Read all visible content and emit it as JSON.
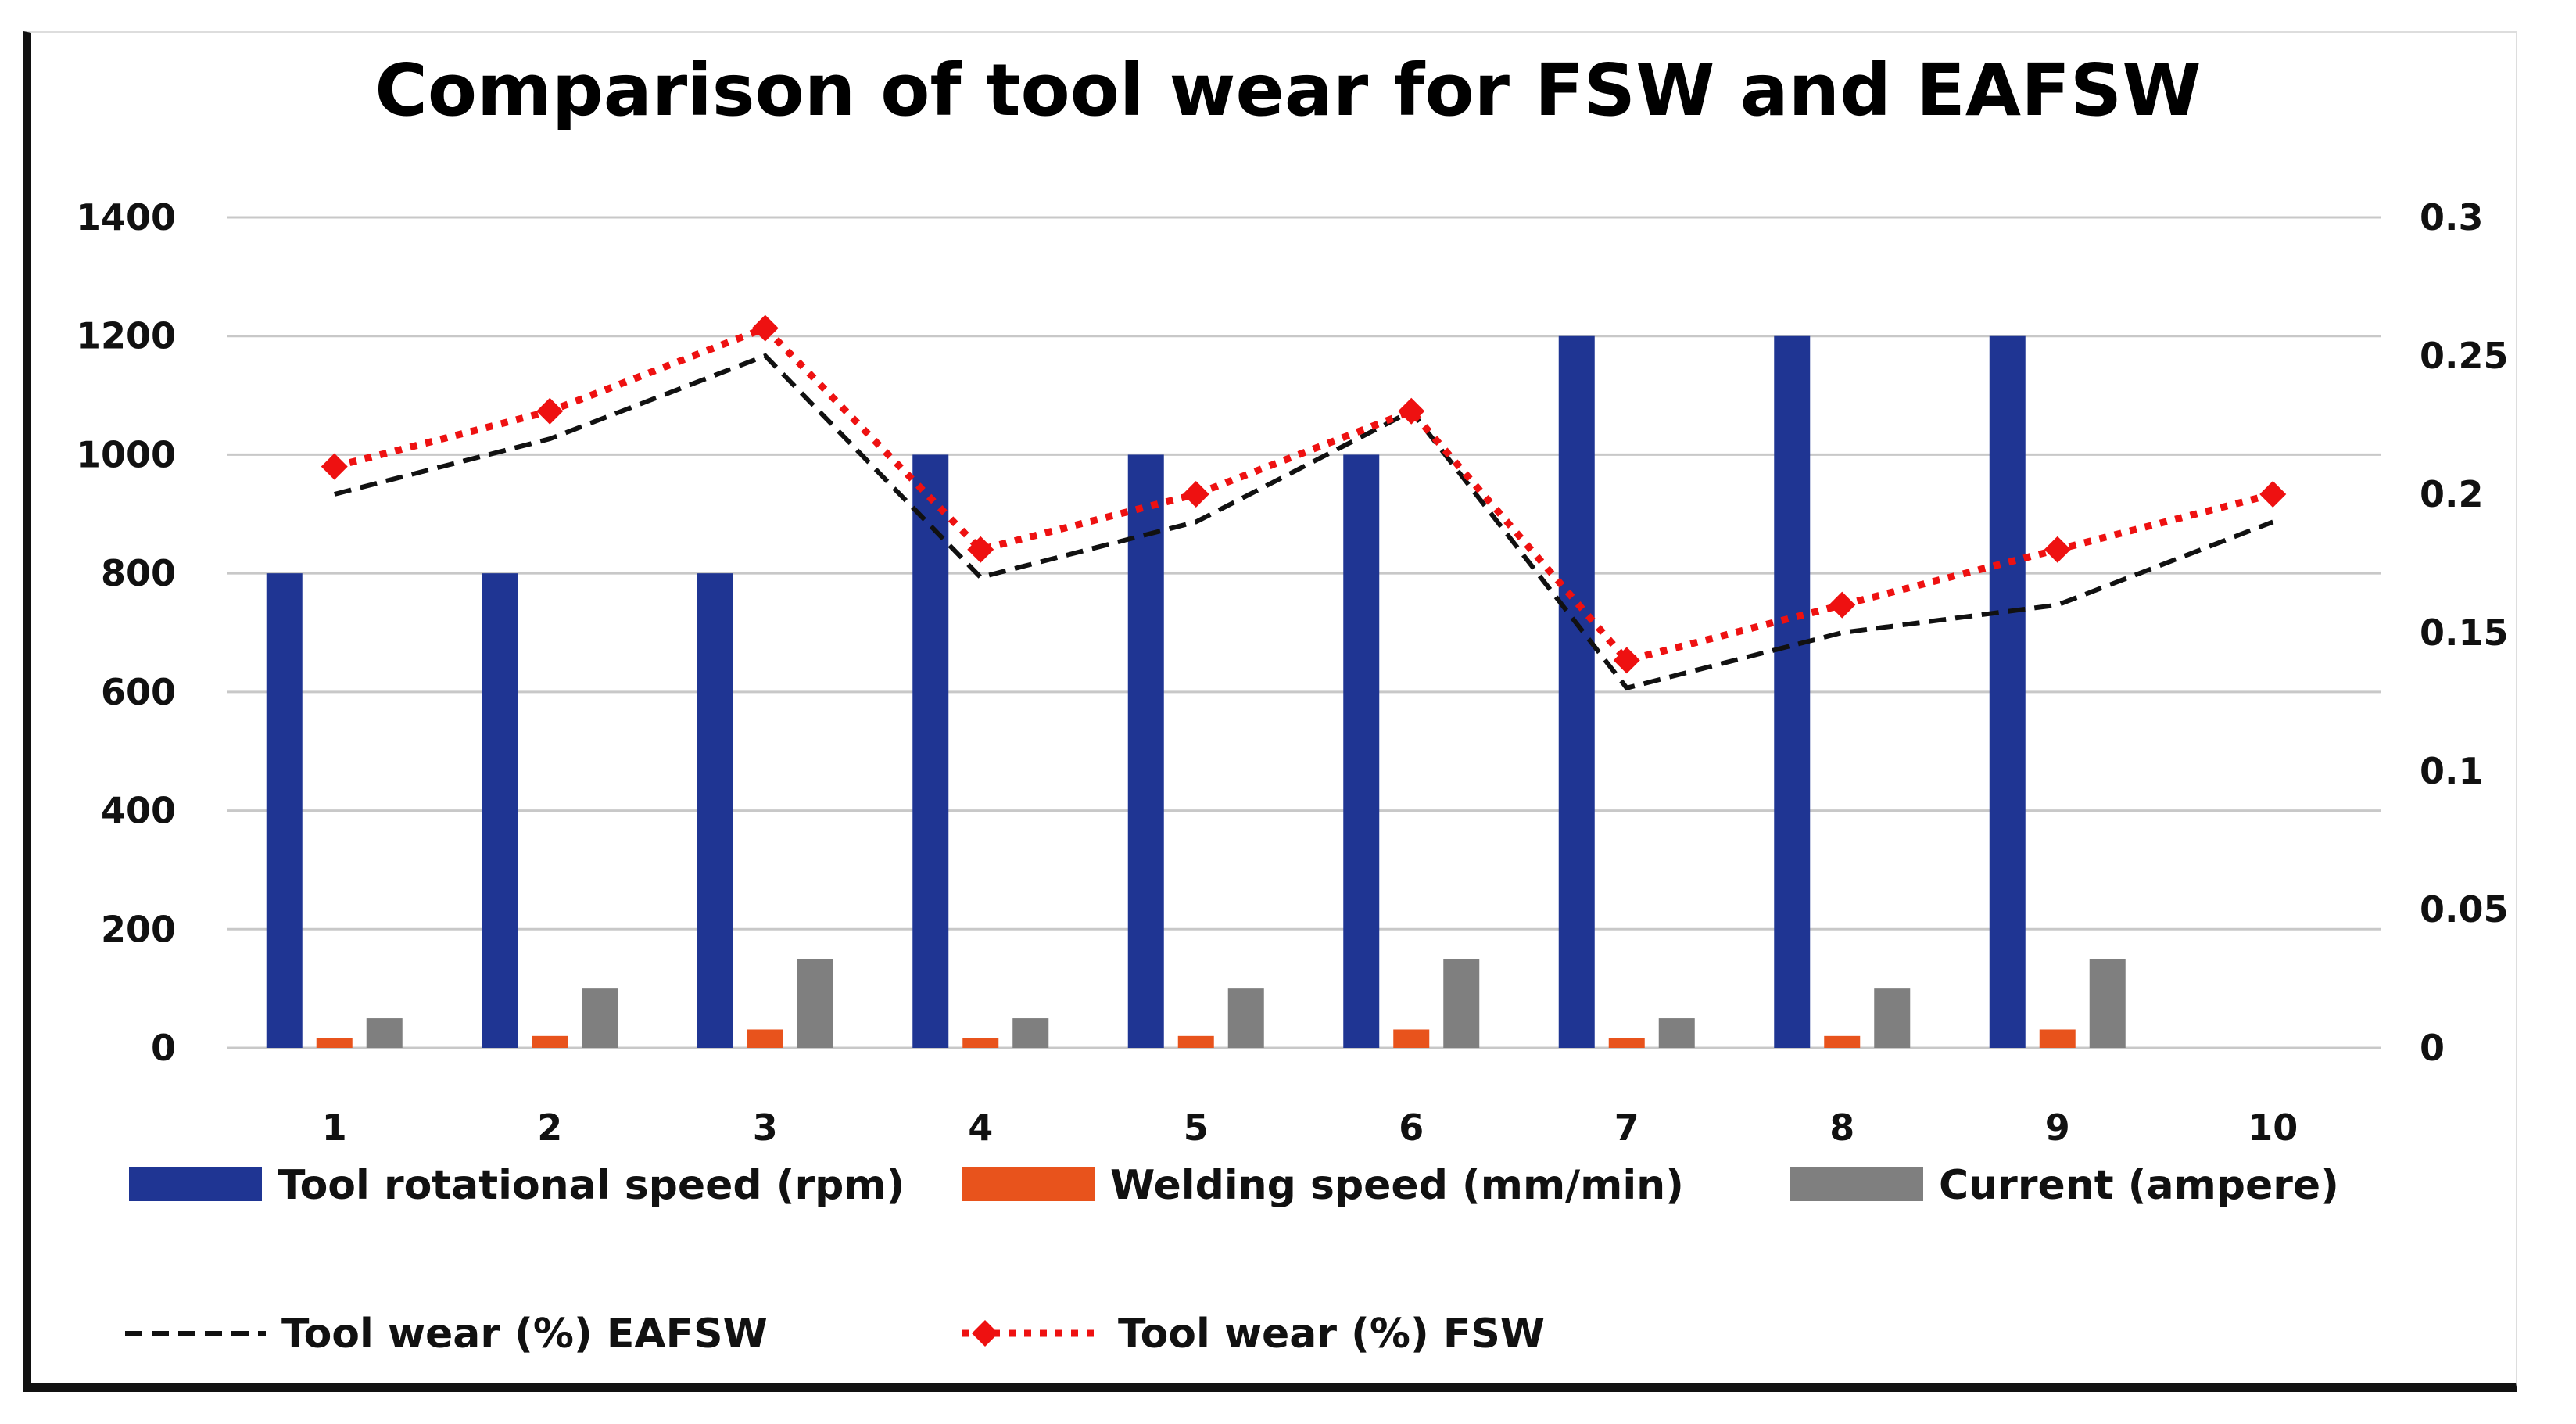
{
  "chart_data": {
    "type": "bar",
    "title": "Comparison of tool wear for FSW and EAFSW",
    "categories": [
      "1",
      "2",
      "3",
      "4",
      "5",
      "6",
      "7",
      "8",
      "9",
      "10"
    ],
    "primary_axis": {
      "ylim": [
        0,
        1400
      ],
      "ticks": [
        "0",
        "200",
        "400",
        "600",
        "800",
        "1000",
        "1200",
        "1400"
      ]
    },
    "secondary_axis": {
      "ylim": [
        0,
        0.3
      ],
      "ticks": [
        "0",
        "0.05",
        "0.1",
        "0.15",
        "0.2",
        "0.25",
        "0.3"
      ]
    },
    "grid": true,
    "legend_position": "bottom",
    "bar_series": [
      {
        "name": "Tool rotational speed (rpm)",
        "color": "#1f3593",
        "axis": "primary",
        "values": [
          800,
          800,
          800,
          1000,
          1000,
          1000,
          1200,
          1200,
          1200,
          null
        ]
      },
      {
        "name": "Welding speed (mm/min)",
        "color": "#e8531c",
        "axis": "primary",
        "values": [
          16,
          20,
          31,
          16,
          20,
          31,
          16,
          20,
          31,
          null
        ]
      },
      {
        "name": "Current (ampere)",
        "color": "#7f7f7f",
        "axis": "primary",
        "values": [
          50,
          100,
          150,
          50,
          100,
          150,
          50,
          100,
          150,
          null
        ]
      }
    ],
    "line_series": [
      {
        "name": "Tool wear (%) EAFSW",
        "color": "#111111",
        "style": "dashed",
        "axis": "secondary",
        "values": [
          0.2,
          0.22,
          0.25,
          0.17,
          0.19,
          0.23,
          0.13,
          0.15,
          0.16,
          0.19
        ]
      },
      {
        "name": "Tool wear (%) FSW",
        "color": "#ee1111",
        "style": "dotted",
        "marker": "diamond",
        "axis": "secondary",
        "values": [
          0.21,
          0.23,
          0.26,
          0.18,
          0.2,
          0.23,
          0.14,
          0.16,
          0.18,
          0.2
        ]
      }
    ]
  }
}
